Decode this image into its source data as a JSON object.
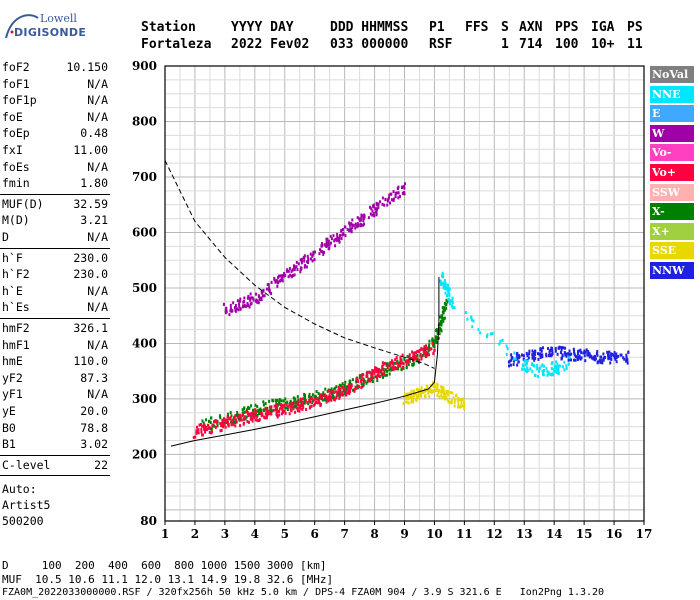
{
  "logo": {
    "line1": "Lowell",
    "line2": "DIGISONDE"
  },
  "header": {
    "labels": [
      "Station",
      "YYYY DAY",
      "DDD HHMMSS",
      "P1",
      "FFS",
      "S",
      "AXN",
      "PPS",
      "IGA",
      "PS"
    ],
    "values": [
      "Fortaleza",
      "2022 Fev02",
      "033 000000",
      "RSF",
      "",
      "1",
      "714",
      "100",
      "10+",
      "11"
    ]
  },
  "params_group1": [
    {
      "name": "foF2",
      "value": "10.150"
    },
    {
      "name": "foF1",
      "value": "N/A"
    },
    {
      "name": "foF1p",
      "value": "N/A"
    },
    {
      "name": "foE",
      "value": "N/A"
    },
    {
      "name": "foEp",
      "value": "0.48"
    },
    {
      "name": "fxI",
      "value": "11.00"
    },
    {
      "name": "foEs",
      "value": "N/A"
    },
    {
      "name": "fmin",
      "value": "1.80"
    }
  ],
  "params_group2": [
    {
      "name": "MUF(D)",
      "value": "32.59"
    },
    {
      "name": "M(D)",
      "value": "3.21"
    },
    {
      "name": "D",
      "value": "N/A"
    }
  ],
  "params_group3": [
    {
      "name": "h`F",
      "value": "230.0"
    },
    {
      "name": "h`F2",
      "value": "230.0"
    },
    {
      "name": "h`E",
      "value": "N/A"
    },
    {
      "name": "h`Es",
      "value": "N/A"
    }
  ],
  "params_group4": [
    {
      "name": "hmF2",
      "value": "326.1"
    },
    {
      "name": "hmF1",
      "value": "N/A"
    },
    {
      "name": "hmE",
      "value": "110.0"
    },
    {
      "name": "yF2",
      "value": "87.3"
    },
    {
      "name": "yF1",
      "value": "N/A"
    },
    {
      "name": "yE",
      "value": "20.0"
    },
    {
      "name": "B0",
      "value": "78.8"
    },
    {
      "name": "B1",
      "value": "3.02"
    }
  ],
  "params_group5": [
    {
      "name": "C-level",
      "value": "22"
    }
  ],
  "auto_lines": [
    "Auto:",
    "Artist5",
    "500200"
  ],
  "legend": [
    {
      "label": "NoVal",
      "color": "#7f7f7f",
      "text_color": "#ffffff"
    },
    {
      "label": "NNE",
      "color": "#00e6ff",
      "text_color": "#ffffff"
    },
    {
      "label": "E",
      "color": "#40a8ff",
      "text_color": "#ffffff"
    },
    {
      "label": "W",
      "color": "#a000a8",
      "text_color": "#ffffff"
    },
    {
      "label": "Vo-",
      "color": "#ff40c0",
      "text_color": "#ffffff"
    },
    {
      "label": "Vo+",
      "color": "#ff0040",
      "text_color": "#ffffff"
    },
    {
      "label": "SSW",
      "color": "#ffb0b0",
      "text_color": "#ffffff"
    },
    {
      "label": "X-",
      "color": "#008000",
      "text_color": "#ffffff"
    },
    {
      "label": "X+",
      "color": "#a0d040",
      "text_color": "#ffffff"
    },
    {
      "label": "SSE",
      "color": "#e8d800",
      "text_color": "#ffffff"
    },
    {
      "label": "NNW",
      "color": "#2020e0",
      "text_color": "#ffffff"
    }
  ],
  "footer": {
    "d_line": "D     100  200  400  600  800 1000 1500 3000 [km]",
    "muf_line": "MUF  10.5 10.6 11.1 12.0 13.1 14.9 19.8 32.6 [MHz]",
    "file_line": "FZA0M_2022033000000.RSF / 320fx256h 50 kHz 5.0 km / DPS-4 FZA0M 904 / 3.9 S 321.6 E   Ion2Png 1.3.20"
  },
  "chart_data": {
    "type": "scatter",
    "title": "",
    "xlabel": "",
    "ylabel": "",
    "xlim": [
      1,
      17
    ],
    "ylim": [
      80,
      900
    ],
    "x_ticks": [
      1,
      2,
      3,
      4,
      5,
      6,
      7,
      8,
      9,
      10,
      11,
      12,
      13,
      14,
      15,
      16,
      17
    ],
    "y_ticks": [
      80,
      200,
      300,
      400,
      500,
      600,
      700,
      800,
      900
    ],
    "grid": true,
    "legend_position": "right",
    "series": [
      {
        "name": "X-",
        "kind": "traces",
        "color": "#008000",
        "points": [
          [
            2.2,
            250
          ],
          [
            3.0,
            262
          ],
          [
            3.5,
            270
          ],
          [
            4.0,
            280
          ],
          [
            4.5,
            288
          ],
          [
            5.0,
            290
          ],
          [
            5.5,
            296
          ],
          [
            6.0,
            302
          ],
          [
            6.5,
            310
          ],
          [
            7.0,
            318
          ],
          [
            7.5,
            330
          ],
          [
            8.0,
            342
          ],
          [
            8.5,
            355
          ],
          [
            9.0,
            365
          ],
          [
            9.5,
            375
          ],
          [
            10.0,
            400
          ],
          [
            10.2,
            430
          ],
          [
            10.4,
            470
          ]
        ]
      },
      {
        "name": "Vo+",
        "kind": "traces",
        "color": "#ff0040",
        "points": [
          [
            2.0,
            240
          ],
          [
            2.5,
            248
          ],
          [
            3.0,
            255
          ],
          [
            3.5,
            262
          ],
          [
            4.0,
            270
          ],
          [
            4.5,
            275
          ],
          [
            5.0,
            282
          ],
          [
            5.5,
            288
          ],
          [
            6.0,
            296
          ],
          [
            6.5,
            305
          ],
          [
            7.0,
            315
          ],
          [
            7.5,
            330
          ],
          [
            8.0,
            345
          ],
          [
            8.5,
            360
          ],
          [
            9.0,
            370
          ],
          [
            9.5,
            380
          ],
          [
            10.0,
            395
          ]
        ]
      },
      {
        "name": "W",
        "kind": "traces",
        "color": "#a000a8",
        "points": [
          [
            3.0,
            460
          ],
          [
            3.5,
            470
          ],
          [
            4.0,
            480
          ],
          [
            4.5,
            500
          ],
          [
            5.0,
            520
          ],
          [
            5.5,
            540
          ],
          [
            6.0,
            560
          ],
          [
            6.5,
            580
          ],
          [
            7.0,
            600
          ],
          [
            7.5,
            620
          ],
          [
            8.0,
            640
          ],
          [
            8.5,
            660
          ],
          [
            9.0,
            680
          ]
        ]
      },
      {
        "name": "NNW",
        "kind": "traces",
        "color": "#2020e0",
        "points": [
          [
            12.5,
            370
          ],
          [
            13.0,
            375
          ],
          [
            13.5,
            380
          ],
          [
            14.0,
            385
          ],
          [
            14.5,
            380
          ],
          [
            15.0,
            380
          ],
          [
            15.5,
            375
          ],
          [
            16.0,
            375
          ],
          [
            16.5,
            375
          ]
        ]
      },
      {
        "name": "SSE",
        "kind": "traces",
        "color": "#e8d800",
        "points": [
          [
            9.0,
            300
          ],
          [
            9.3,
            305
          ],
          [
            9.6,
            310
          ],
          [
            10.0,
            320
          ],
          [
            10.3,
            310
          ],
          [
            10.6,
            300
          ],
          [
            11.0,
            290
          ]
        ]
      },
      {
        "name": "NNE",
        "kind": "traces",
        "color": "#00e6ff",
        "points": [
          [
            10.2,
            520
          ],
          [
            10.4,
            500
          ],
          [
            10.6,
            470
          ],
          [
            13.0,
            360
          ],
          [
            13.5,
            350
          ],
          [
            14.0,
            355
          ],
          [
            14.5,
            365
          ]
        ]
      }
    ],
    "profile_curve": [
      [
        1.2,
        215
      ],
      [
        2,
        225
      ],
      [
        3,
        235
      ],
      [
        4,
        245
      ],
      [
        5,
        256
      ],
      [
        6,
        268
      ],
      [
        7,
        280
      ],
      [
        8,
        292
      ],
      [
        9,
        305
      ],
      [
        9.8,
        318
      ],
      [
        10.0,
        330
      ],
      [
        10.1,
        380
      ],
      [
        10.15,
        440
      ],
      [
        10.15,
        520
      ]
    ],
    "model_curve_dashed": [
      [
        1,
        730
      ],
      [
        2,
        620
      ],
      [
        3,
        555
      ],
      [
        4,
        505
      ],
      [
        5,
        465
      ],
      [
        6,
        435
      ],
      [
        7,
        410
      ],
      [
        8,
        392
      ],
      [
        9,
        375
      ],
      [
        9.6,
        365
      ],
      [
        10,
        355
      ]
    ]
  }
}
